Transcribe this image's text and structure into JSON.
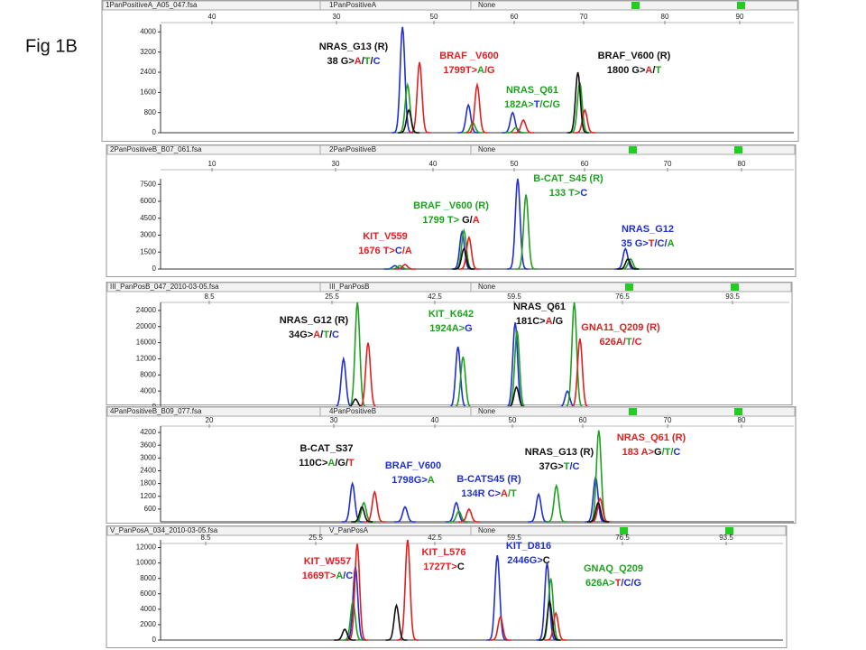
{
  "figure_label": "Fig 1B",
  "chart_data": [
    {
      "type": "line",
      "title": "1PanPositiveA_A05_047.fsa",
      "header_labels": [
        "1PanPositiveA",
        "None"
      ],
      "ruler": [
        "40",
        "30",
        "50",
        "60",
        "70",
        "80",
        "90"
      ],
      "xlim": [
        0,
        100
      ],
      "ylim": [
        0,
        4300
      ],
      "yticks": [
        0,
        800,
        1600,
        2400,
        3200,
        4000
      ],
      "series": [
        {
          "color": "#2030d0",
          "x": [
            38.2,
            48.6,
            55.6
          ],
          "values": [
            4200,
            1100,
            800
          ]
        },
        {
          "color": "#20a020",
          "x": [
            39.0,
            49.3,
            56.1,
            66.2
          ],
          "values": [
            1900,
            400,
            200,
            2000
          ]
        },
        {
          "color": "#e02020",
          "x": [
            40.9,
            50.0,
            57.3,
            67.0
          ],
          "values": [
            2800,
            1900,
            500,
            900
          ]
        },
        {
          "color": "#111111",
          "x": [
            39.2,
            65.9
          ],
          "values": [
            900,
            2400
          ]
        }
      ],
      "annotations": [
        [
          [
            {
              "text": "NRAS_G13  (R)",
              "color": "#111111"
            }
          ],
          [
            {
              "text": "38 G>",
              "color": "#111111"
            },
            {
              "text": "A",
              "color": "#e02020"
            },
            {
              "text": "/",
              "color": "#111111"
            },
            {
              "text": "T",
              "color": "#20a020"
            },
            {
              "text": "/",
              "color": "#111111"
            },
            {
              "text": "C",
              "color": "#2030d0"
            }
          ]
        ],
        [
          [
            {
              "text": "BRAF  _V600",
              "color": "#e02020"
            }
          ],
          [
            {
              "text": "1799T>",
              "color": "#e02020"
            },
            {
              "text": "A",
              "color": "#20a020"
            },
            {
              "text": "/G",
              "color": "#e02020"
            }
          ]
        ],
        [
          [
            {
              "text": "NRAS_Q61",
              "color": "#20a020"
            }
          ],
          [
            {
              "text": "182A>",
              "color": "#20a020"
            },
            {
              "text": "T",
              "color": "#2030d0"
            },
            {
              "text": "/C/G",
              "color": "#20a020"
            }
          ]
        ],
        [
          [
            {
              "text": "BRAF_V600  (R)",
              "color": "#111111"
            }
          ],
          [
            {
              "text": "1800 G>",
              "color": "#111111"
            },
            {
              "text": "A",
              "color": "#e02020"
            },
            {
              "text": "/",
              "color": "#111111"
            },
            {
              "text": "T",
              "color": "#20a020"
            }
          ]
        ]
      ]
    },
    {
      "type": "line",
      "title": "2PanPositiveB_B07_061.fsa",
      "header_labels": [
        "2PanPositiveB",
        "None"
      ],
      "ruler": [
        "10",
        "30",
        "40",
        "50",
        "60",
        "70",
        "80"
      ],
      "xlim": [
        0,
        100
      ],
      "ylim": [
        0,
        8000
      ],
      "yticks": [
        0,
        1500,
        3000,
        4500,
        6000,
        7500
      ],
      "series": [
        {
          "color": "#2030d0",
          "x": [
            37.0,
            47.6,
            56.4,
            73.4
          ],
          "values": [
            300,
            3300,
            8000,
            1800
          ]
        },
        {
          "color": "#20a020",
          "x": [
            37.8,
            47.9,
            57.7,
            74.2
          ],
          "values": [
            300,
            3400,
            6600,
            900
          ]
        },
        {
          "color": "#e02020",
          "x": [
            38.6,
            48.7
          ],
          "values": [
            400,
            2800
          ]
        },
        {
          "color": "#111111",
          "x": [
            47.9,
            73.8
          ],
          "values": [
            1800,
            900
          ]
        }
      ],
      "annotations": [
        [
          [
            {
              "text": "KIT_V559",
              "color": "#e02020"
            }
          ],
          [
            {
              "text": "1676 T>",
              "color": "#e02020"
            },
            {
              "text": "C",
              "color": "#2030d0"
            },
            {
              "text": "/A",
              "color": "#e02020"
            }
          ]
        ],
        [
          [
            {
              "text": "BRAF  _V600 (R)",
              "color": "#20a020"
            }
          ],
          [
            {
              "text": "1799 T> ",
              "color": "#20a020"
            },
            {
              "text": "G/",
              "color": "#111111"
            },
            {
              "text": "A",
              "color": "#e02020"
            }
          ]
        ],
        [
          [
            {
              "text": "B-CAT_S45  (R)",
              "color": "#20a020"
            }
          ],
          [
            {
              "text": "133 T>",
              "color": "#20a020"
            },
            {
              "text": "C",
              "color": "#2030d0"
            }
          ]
        ],
        [
          [
            {
              "text": "NRAS_G12",
              "color": "#2030d0"
            }
          ],
          [
            {
              "text": "35 G>",
              "color": "#2030d0"
            },
            {
              "text": "T",
              "color": "#e02020"
            },
            {
              "text": "/C/",
              "color": "#2030d0"
            },
            {
              "text": "A",
              "color": "#20a020"
            }
          ]
        ]
      ]
    },
    {
      "type": "line",
      "title": "III_PanPosB_047_2010-03-05.fsa",
      "header_labels": [
        "III_PanPosB",
        "None"
      ],
      "ruler": [
        "8.5",
        "25.5",
        "42.5",
        "59.5",
        "76.5",
        "93.5"
      ],
      "xlim": [
        0,
        100
      ],
      "ylim": [
        0,
        26000
      ],
      "yticks": [
        0,
        4000,
        8000,
        12000,
        16000,
        20000,
        24000
      ],
      "series": [
        {
          "color": "#2030d0",
          "x": [
            29.1,
            47.3,
            56.4,
            64.7
          ],
          "values": [
            12000,
            15000,
            21000,
            4000
          ]
        },
        {
          "color": "#20a020",
          "x": [
            31.3,
            48.1,
            56.7,
            65.8
          ],
          "values": [
            26000,
            12500,
            19000,
            26000
          ]
        },
        {
          "color": "#e02020",
          "x": [
            33.0,
            66.7
          ],
          "values": [
            16000,
            17000
          ]
        },
        {
          "color": "#111111",
          "x": [
            31.0,
            56.6
          ],
          "values": [
            2000,
            5000
          ]
        }
      ],
      "annotations": [
        [
          [
            {
              "text": "NRAS_G12  (R)",
              "color": "#111111"
            }
          ],
          [
            {
              "text": "34G>",
              "color": "#111111"
            },
            {
              "text": "A",
              "color": "#e02020"
            },
            {
              "text": "/",
              "color": "#111111"
            },
            {
              "text": "T",
              "color": "#20a020"
            },
            {
              "text": "/",
              "color": "#111111"
            },
            {
              "text": "C",
              "color": "#2030d0"
            }
          ]
        ],
        [
          [
            {
              "text": "KIT_K642",
              "color": "#20a020"
            }
          ],
          [
            {
              "text": "1924A>",
              "color": "#20a020"
            },
            {
              "text": "G",
              "color": "#2030d0"
            }
          ]
        ],
        [
          [
            {
              "text": "NRAS_Q61",
              "color": "#111111"
            }
          ],
          [
            {
              "text": "181C>",
              "color": "#111111"
            },
            {
              "text": "A",
              "color": "#e02020"
            },
            {
              "text": "/G",
              "color": "#111111"
            }
          ]
        ],
        [
          [
            {
              "text": "GNA11_Q209  (R)",
              "color": "#e02020"
            }
          ],
          [
            {
              "text": "626A/",
              "color": "#e02020"
            },
            {
              "text": "T",
              "color": "#20a020"
            },
            {
              "text": "/C",
              "color": "#e02020"
            }
          ]
        ]
      ]
    },
    {
      "type": "line",
      "title": "4PanPositiveB_B09_077.fsa",
      "header_labels": [
        "4PanPositiveB",
        "None"
      ],
      "ruler": [
        "20",
        "30",
        "40",
        "50",
        "60",
        "70",
        "80"
      ],
      "xlim": [
        0,
        100
      ],
      "ylim": [
        0,
        4500
      ],
      "yticks": [
        600,
        1200,
        1800,
        2400,
        3000,
        3600,
        4200
      ],
      "series": [
        {
          "color": "#2030d0",
          "x": [
            30.3,
            38.6,
            46.7,
            59.7,
            68.7
          ],
          "values": [
            1800,
            700,
            900,
            1300,
            2100
          ]
        },
        {
          "color": "#20a020",
          "x": [
            32.1,
            47.1,
            62.5,
            69.2
          ],
          "values": [
            900,
            500,
            1700,
            4300
          ]
        },
        {
          "color": "#e02020",
          "x": [
            33.8,
            48.7,
            69.4
          ],
          "values": [
            1400,
            600,
            1100
          ]
        },
        {
          "color": "#111111",
          "x": [
            31.8,
            69.1
          ],
          "values": [
            700,
            900
          ]
        }
      ],
      "annotations": [
        [
          [
            {
              "text": "B-CAT_S37",
              "color": "#111111"
            }
          ],
          [
            {
              "text": "110C>",
              "color": "#111111"
            },
            {
              "text": "A",
              "color": "#20a020"
            },
            {
              "text": "/G/",
              "color": "#111111"
            },
            {
              "text": "T",
              "color": "#e02020"
            }
          ]
        ],
        [
          [
            {
              "text": "BRAF_V600",
              "color": "#2030d0"
            }
          ],
          [
            {
              "text": "1798G>",
              "color": "#2030d0"
            },
            {
              "text": "A",
              "color": "#20a020"
            }
          ]
        ],
        [
          [
            {
              "text": "B-CATS45  (R)",
              "color": "#2030d0"
            }
          ],
          [
            {
              "text": "134R C>",
              "color": "#2030d0"
            },
            {
              "text": "A",
              "color": "#e02020"
            },
            {
              "text": "/T",
              "color": "#20a020"
            }
          ]
        ],
        [
          [
            {
              "text": "NRAS_G13  (R)",
              "color": "#111111"
            }
          ],
          [
            {
              "text": "37G>",
              "color": "#111111"
            },
            {
              "text": "T",
              "color": "#20a020"
            },
            {
              "text": "/C",
              "color": "#2030d0"
            }
          ]
        ],
        [
          [
            {
              "text": "NRAS_Q61  (R)",
              "color": "#e02020"
            }
          ],
          [
            {
              "text": "183 A>",
              "color": "#e02020"
            },
            {
              "text": "G",
              "color": "#111111"
            },
            {
              "text": "/T/",
              "color": "#20a020"
            },
            {
              "text": "C",
              "color": "#2030d0"
            }
          ]
        ]
      ]
    },
    {
      "type": "line",
      "title": "V_PanPosA_034_2010-03-05.fsa",
      "header_labels": [
        "V_PanPosA",
        "None"
      ],
      "ruler": [
        "8.5",
        "25.5",
        "42.5",
        "59.5",
        "76.5",
        "93.5"
      ],
      "xlim": [
        0,
        100
      ],
      "ylim": [
        0,
        13000
      ],
      "yticks": [
        0,
        2000,
        4000,
        6000,
        8000,
        10000,
        12000
      ],
      "series": [
        {
          "color": "#2030d0",
          "x": [
            31.3,
            54.1,
            62.1
          ],
          "values": [
            9500,
            11000,
            10000
          ]
        },
        {
          "color": "#20a020",
          "x": [
            30.9,
            62.7
          ],
          "values": [
            5000,
            8000
          ]
        },
        {
          "color": "#e02020",
          "x": [
            31.6,
            39.7,
            54.6,
            63.5
          ],
          "values": [
            12500,
            13000,
            3000,
            3500
          ]
        },
        {
          "color": "#111111",
          "x": [
            29.6,
            37.9,
            62.5
          ],
          "values": [
            1400,
            4500,
            5000
          ]
        }
      ],
      "annotations": [
        [
          [
            {
              "text": "KIT_W557",
              "color": "#e02020"
            }
          ],
          [
            {
              "text": "1669T>",
              "color": "#e02020"
            },
            {
              "text": "A",
              "color": "#20a020"
            },
            {
              "text": "/C",
              "color": "#2030d0"
            }
          ]
        ],
        [
          [
            {
              "text": "KIT_L576",
              "color": "#e02020"
            }
          ],
          [
            {
              "text": "1727T>",
              "color": "#e02020"
            },
            {
              "text": "C",
              "color": "#111111"
            }
          ]
        ],
        [
          [
            {
              "text": "KIT_D816",
              "color": "#2030d0"
            }
          ],
          [
            {
              "text": "2446G>",
              "color": "#2030d0"
            },
            {
              "text": "C",
              "color": "#111111"
            }
          ]
        ],
        [
          [
            {
              "text": "GNAQ_Q209",
              "color": "#20a020"
            }
          ],
          [
            {
              "text": "626A>",
              "color": "#20a020"
            },
            {
              "text": "T",
              "color": "#e02020"
            },
            {
              "text": "/C/G",
              "color": "#2030d0"
            }
          ]
        ]
      ]
    }
  ]
}
